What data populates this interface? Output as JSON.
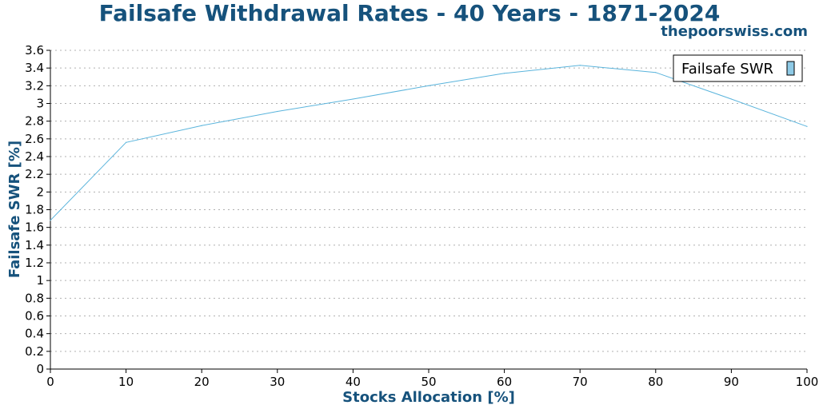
{
  "title": "Failsafe Withdrawal Rates - 40 Years - 1871-2024",
  "source": "thepoorswiss.com",
  "chart_data": {
    "type": "line",
    "xlabel": "Stocks Allocation [%]",
    "ylabel": "Failsafe SWR [%]",
    "xlim": [
      0,
      100
    ],
    "ylim": [
      0,
      3.6
    ],
    "x_ticks": [
      0,
      10,
      20,
      30,
      40,
      50,
      60,
      70,
      80,
      90,
      100
    ],
    "y_ticks": [
      0,
      0.2,
      0.4,
      0.6,
      0.8,
      1,
      1.2,
      1.4,
      1.6,
      1.8,
      2,
      2.2,
      2.4,
      2.6,
      2.8,
      3,
      3.2,
      3.4,
      3.6
    ],
    "y_tick_labels": [
      "0",
      "0.2",
      "0.4",
      "0.6",
      "0.8",
      "1",
      "1.2",
      "1.4",
      "1.6",
      "1.8",
      "2",
      "2.2",
      "2.4",
      "2.6",
      "2.8",
      "3",
      "3.2",
      "3.4",
      "3.6"
    ],
    "grid": "horizontal-dotted",
    "legend_position": "top-right",
    "series": [
      {
        "name": "Failsafe SWR",
        "color": "#5ab4dc",
        "x": [
          0,
          10,
          20,
          30,
          40,
          50,
          60,
          70,
          80,
          90,
          100
        ],
        "values": [
          1.68,
          2.56,
          2.75,
          2.91,
          3.05,
          3.2,
          3.34,
          3.43,
          3.35,
          3.05,
          2.74
        ]
      }
    ]
  }
}
